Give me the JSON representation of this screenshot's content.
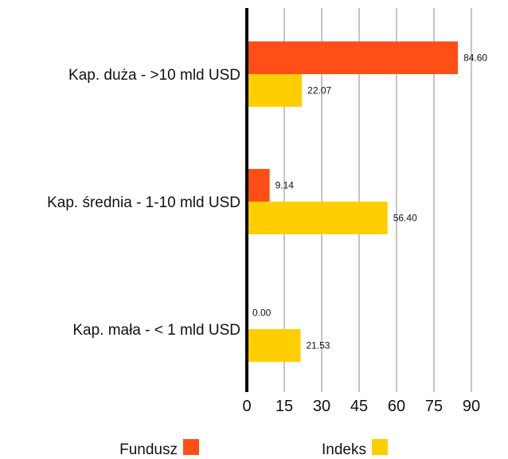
{
  "chart_data": {
    "type": "bar",
    "orientation": "horizontal",
    "categories": [
      "Kap. duża - >10 mld USD",
      "Kap. średnia - 1-10 mld USD",
      "Kap. mała - < 1 mld USD"
    ],
    "series": [
      {
        "name": "Fundusz",
        "color": "#FF4F17",
        "values": [
          84.6,
          9.14,
          0.0
        ],
        "labels": [
          "84.60",
          "9.14",
          "0.00"
        ]
      },
      {
        "name": "Indeks",
        "color": "#FFCE00",
        "values": [
          22.07,
          56.4,
          21.53
        ],
        "labels": [
          "22.07",
          "56.40",
          "21.53"
        ]
      }
    ],
    "xticks": [
      "0",
      "15",
      "30",
      "45",
      "60",
      "75",
      "90"
    ],
    "xlim": [
      0,
      90
    ],
    "grid": "vertical",
    "legend": "bottom",
    "title": "",
    "xlabel": "",
    "ylabel": ""
  }
}
